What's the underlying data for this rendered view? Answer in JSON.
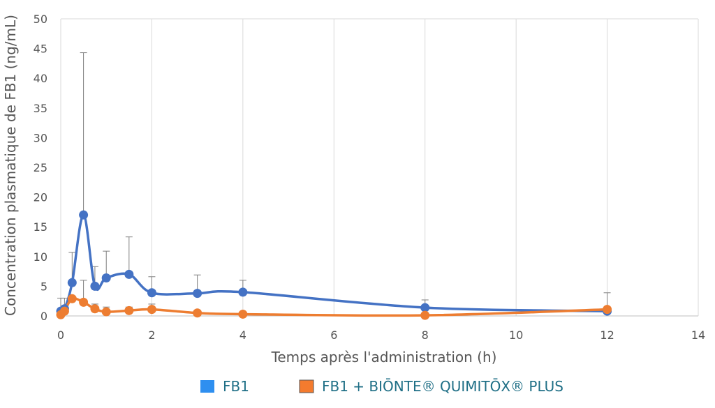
{
  "chart_data": {
    "type": "line",
    "xlabel": "Temps après l'administration (h)",
    "ylabel": "Concentration plasmatique de FB1 (ng/mL)",
    "xlim": [
      0,
      14
    ],
    "ylim": [
      0,
      50
    ],
    "xticks": [
      0,
      2,
      4,
      6,
      8,
      10,
      12,
      14
    ],
    "yticks": [
      0,
      5,
      10,
      15,
      20,
      25,
      30,
      35,
      40,
      45,
      50
    ],
    "grid": "vertical",
    "legend_position": "bottom",
    "series": [
      {
        "name": "FB1",
        "color": "#4472c4",
        "legend_color": "#2e8ff0",
        "x": [
          0,
          0.083,
          0.25,
          0.5,
          0.75,
          1,
          1.5,
          2,
          3,
          4,
          8,
          12
        ],
        "y": [
          0.8,
          1.2,
          5.6,
          17.0,
          5.0,
          6.4,
          7.0,
          3.9,
          3.8,
          4.0,
          1.4,
          0.8
        ],
        "error_upper": [
          3.0,
          3.0,
          10.7,
          44.3,
          8.3,
          10.9,
          13.3,
          6.6,
          6.9,
          6.0,
          2.7,
          3.9
        ]
      },
      {
        "name": "FB1 + BIŌNTE® QUIMITŌX® PLUS",
        "color": "#ed7d31",
        "legend_color": "#f47b2e",
        "x": [
          0,
          0.083,
          0.25,
          0.5,
          0.75,
          1,
          1.5,
          2,
          3,
          4,
          8,
          12
        ],
        "y": [
          0.2,
          0.8,
          2.9,
          2.3,
          1.2,
          0.7,
          0.9,
          1.1,
          0.5,
          0.3,
          0.1,
          1.1
        ],
        "error_upper": [
          1.2,
          1.5,
          3.2,
          6.0,
          2.0,
          1.5,
          1.5,
          2.0,
          0.8,
          0.6,
          0.3,
          1.5
        ]
      }
    ]
  }
}
